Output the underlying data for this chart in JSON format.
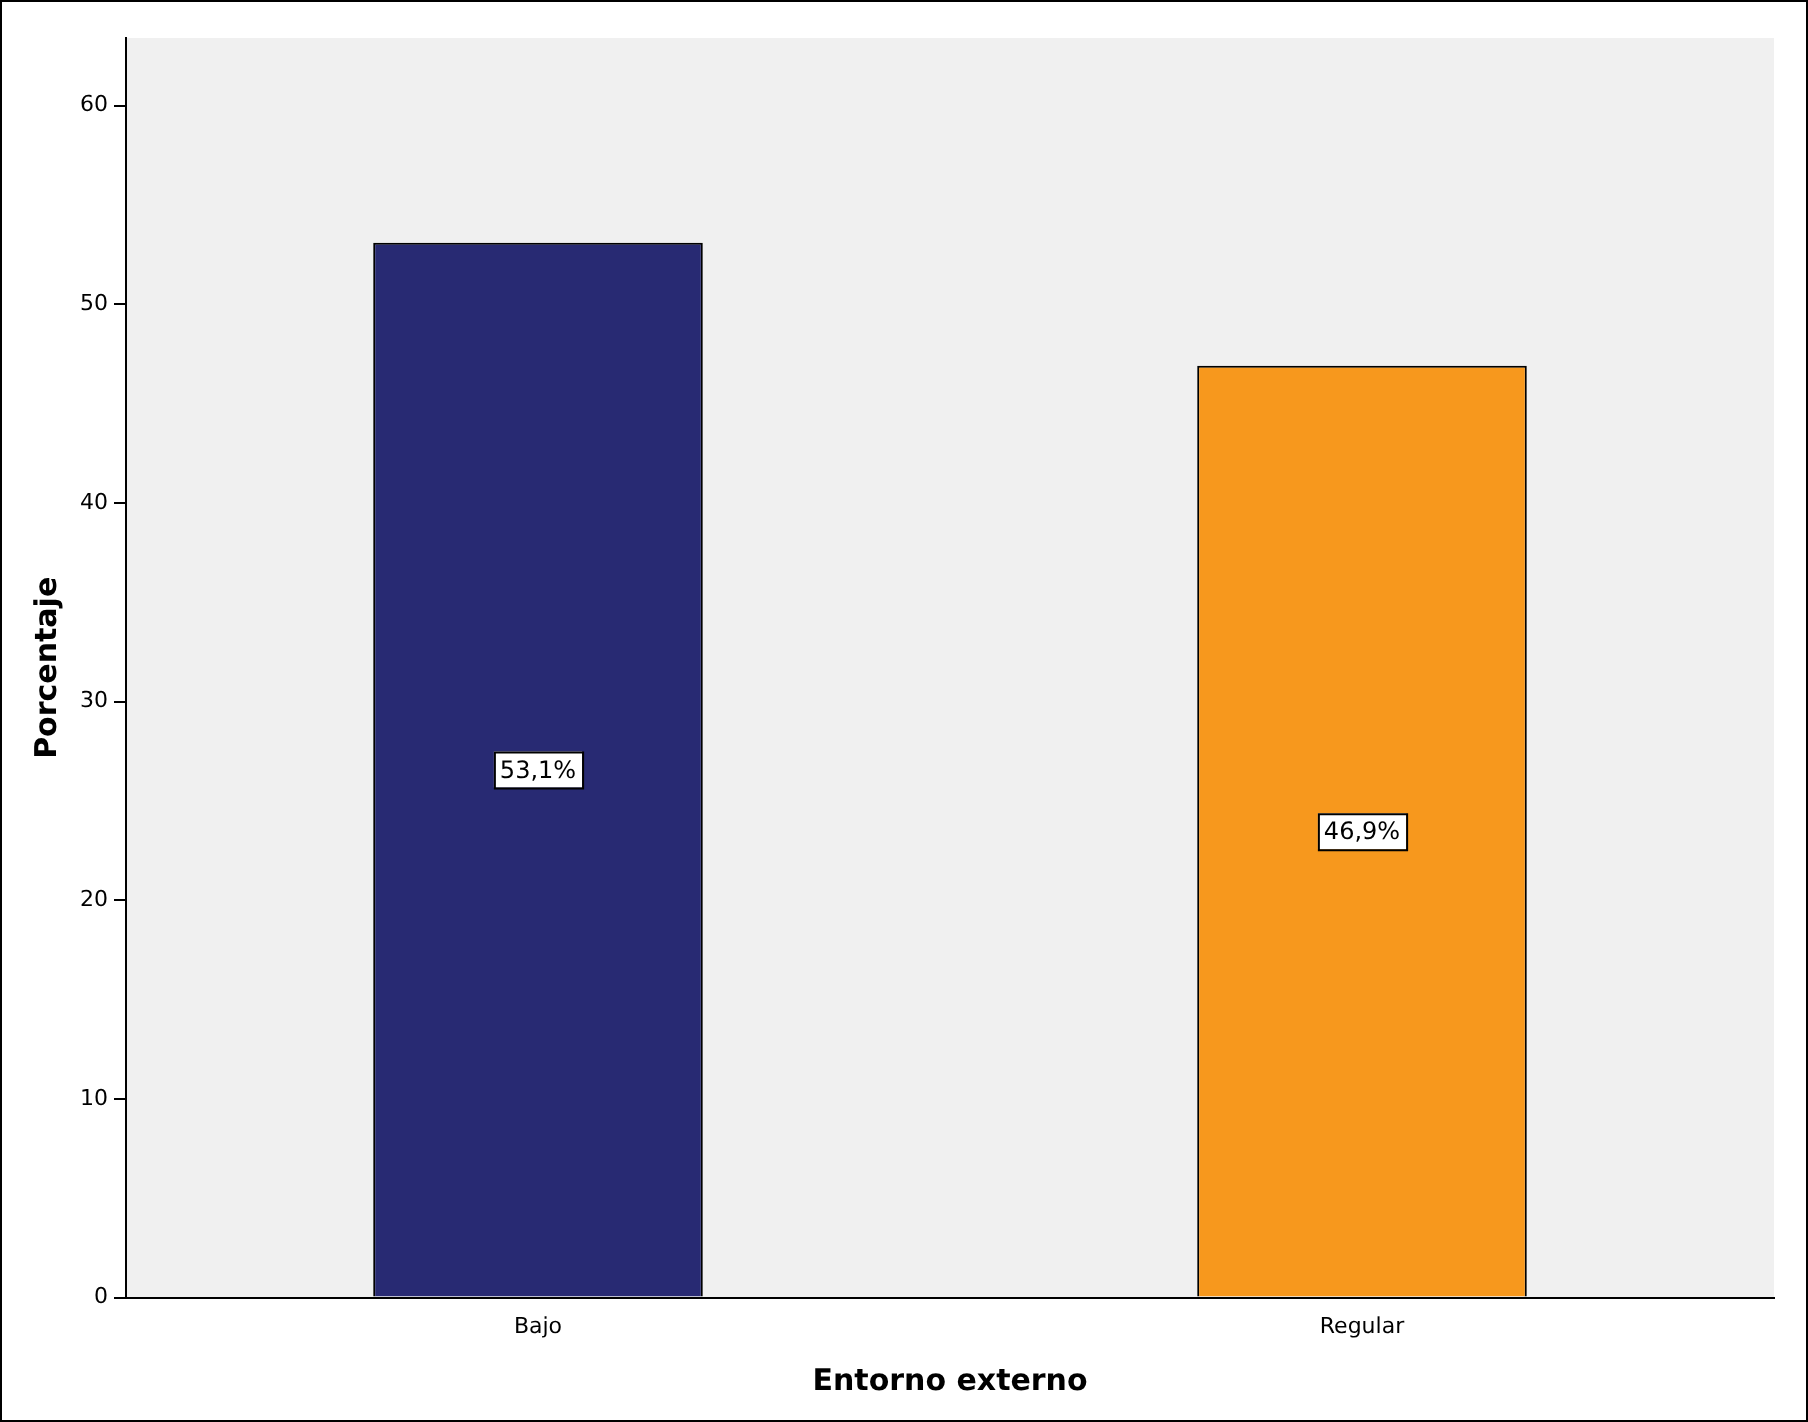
{
  "chart_data": {
    "type": "bar",
    "xlabel": "Entorno externo",
    "ylabel": "Porcentaje",
    "categories": [
      "Bajo",
      "Regular"
    ],
    "values": [
      53.1,
      46.9
    ],
    "colors": [
      "#282a73",
      "#f7981d"
    ],
    "value_labels": [
      "53,1%",
      "46,9%"
    ],
    "ylim": [
      0,
      63.4
    ],
    "yticks": [
      0,
      10,
      20,
      30,
      40,
      50,
      60
    ],
    "grid": false,
    "legend": false
  }
}
